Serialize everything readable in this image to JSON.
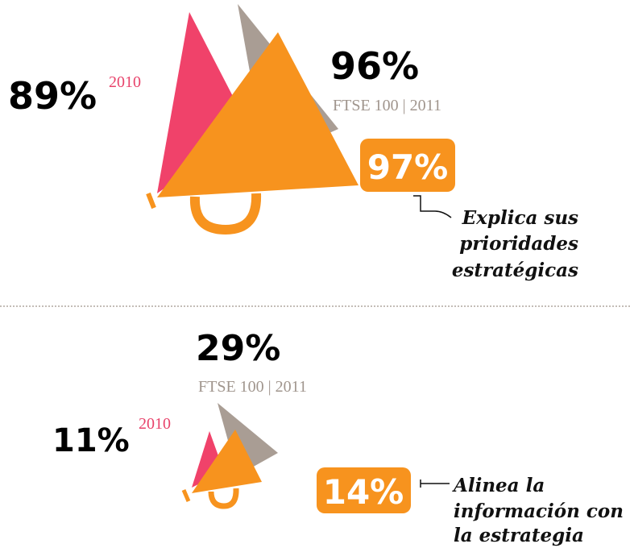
{
  "panels": [
    {
      "prior": "89%",
      "prior_year": "2010",
      "current": "96%",
      "current_label": "FTSE 100 | 2011",
      "highlight": "97%",
      "caption": [
        "Explica sus",
        "prioridades",
        "estratégicas"
      ]
    },
    {
      "prior": "11%",
      "prior_year": "2010",
      "current": "29%",
      "current_label": "FTSE 100 | 2011",
      "highlight": "14%",
      "caption": [
        "Alinea la",
        "información con",
        "la estrategia"
      ]
    }
  ]
}
